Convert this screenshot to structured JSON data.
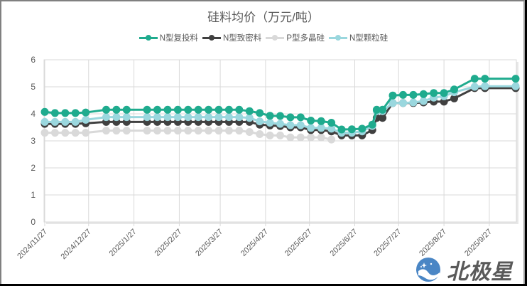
{
  "chart_data": {
    "type": "line",
    "title": "硅料均价（万元/吨）",
    "xlabel": "",
    "ylabel": "",
    "ylim": [
      0,
      6
    ],
    "yticks": [
      0,
      1,
      2,
      3,
      4,
      5,
      6
    ],
    "grid": true,
    "legend_position": "top",
    "xtick_labels": [
      "2024/11/27",
      "2024/12/27",
      "2025/1/27",
      "2025/2/27",
      "2025/3/27",
      "2025/4/27",
      "2025/5/27",
      "2025/6/27",
      "2025/7/27",
      "2025/8/27",
      "2025/9/27"
    ],
    "x": [
      "2024/11/27",
      "2024/12/4",
      "2024/12/11",
      "2024/12/18",
      "2024/12/25",
      "2025/1/8",
      "2025/1/15",
      "2025/1/22",
      "2025/2/5",
      "2025/2/12",
      "2025/2/19",
      "2025/2/26",
      "2025/3/5",
      "2025/3/12",
      "2025/3/19",
      "2025/3/26",
      "2025/4/2",
      "2025/4/9",
      "2025/4/16",
      "2025/4/23",
      "2025/4/30",
      "2025/5/7",
      "2025/5/14",
      "2025/5/21",
      "2025/5/28",
      "2025/6/4",
      "2025/6/11",
      "2025/6/18",
      "2025/6/25",
      "2025/7/2",
      "2025/7/9",
      "2025/7/12",
      "2025/7/16",
      "2025/7/23",
      "2025/7/30",
      "2025/8/6",
      "2025/8/13",
      "2025/8/20",
      "2025/8/27",
      "2025/9/3",
      "2025/9/17",
      "2025/9/24",
      "2025/10/15"
    ],
    "series": [
      {
        "name": "N型复投料",
        "color": "#1FAB8E",
        "values": [
          4.07,
          4.03,
          4.03,
          4.03,
          4.05,
          4.15,
          4.15,
          4.15,
          4.15,
          4.15,
          4.15,
          4.15,
          4.15,
          4.15,
          4.15,
          4.15,
          4.15,
          4.15,
          4.1,
          4.03,
          3.93,
          3.92,
          3.87,
          3.87,
          3.75,
          3.73,
          3.67,
          3.42,
          3.43,
          3.45,
          3.6,
          4.15,
          4.15,
          4.68,
          4.7,
          4.7,
          4.73,
          4.77,
          4.77,
          4.9,
          5.3,
          5.3,
          5.3
        ]
      },
      {
        "name": "N型致密料",
        "color": "#404040",
        "values": [
          3.63,
          3.63,
          3.63,
          3.63,
          3.65,
          3.7,
          3.7,
          3.7,
          3.7,
          3.7,
          3.7,
          3.7,
          3.7,
          3.7,
          3.7,
          3.7,
          3.7,
          3.7,
          3.7,
          3.6,
          3.57,
          3.55,
          3.5,
          3.5,
          3.4,
          3.4,
          3.35,
          3.2,
          3.2,
          3.2,
          3.4,
          3.85,
          3.85,
          4.4,
          4.4,
          4.4,
          4.42,
          4.45,
          4.45,
          4.57,
          4.95,
          4.95,
          4.95
        ]
      },
      {
        "name": "P型多晶硅",
        "color": "#D9D9D9",
        "values": [
          3.3,
          3.3,
          3.3,
          3.3,
          3.3,
          3.38,
          3.38,
          3.38,
          3.38,
          3.38,
          3.38,
          3.38,
          3.38,
          3.38,
          3.38,
          3.38,
          3.38,
          3.38,
          3.33,
          3.25,
          3.2,
          3.2,
          3.13,
          3.13,
          3.13,
          3.13,
          3.05,
          null,
          null,
          null,
          null,
          null,
          null,
          null,
          null,
          null,
          null,
          null,
          null,
          null,
          null,
          null,
          null
        ]
      },
      {
        "name": "N型颗粒硅",
        "color": "#9AD7DE",
        "values": [
          3.7,
          3.7,
          3.7,
          3.7,
          3.78,
          3.88,
          3.88,
          3.88,
          3.88,
          3.88,
          3.88,
          3.88,
          3.88,
          3.88,
          3.88,
          3.88,
          3.88,
          3.88,
          3.85,
          3.72,
          3.67,
          3.63,
          3.58,
          3.58,
          3.48,
          3.48,
          3.45,
          3.3,
          3.3,
          3.35,
          3.55,
          4.1,
          4.1,
          4.4,
          4.4,
          4.42,
          4.47,
          4.6,
          4.65,
          4.8,
          5.0,
          5.02,
          5.02
        ]
      }
    ]
  },
  "legend": [
    {
      "label": "N型复投料",
      "color": "#1FAB8E"
    },
    {
      "label": "N型致密料",
      "color": "#404040"
    },
    {
      "label": "P型多晶硅",
      "color": "#D9D9D9"
    },
    {
      "label": "N型颗粒硅",
      "color": "#9AD7DE"
    }
  ],
  "watermark": {
    "text": "北极星",
    "icon": "polaris-star-logo-icon"
  }
}
